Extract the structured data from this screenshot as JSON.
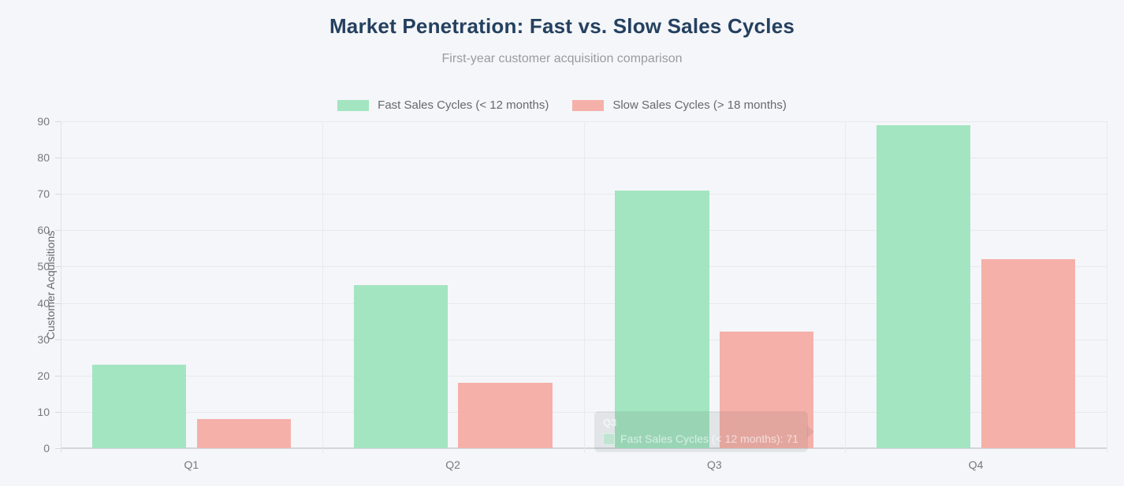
{
  "header": {
    "title": "Market Penetration: Fast vs. Slow Sales Cycles",
    "subtitle": "First-year customer acquisition comparison"
  },
  "colors": {
    "background": "#f4f6f9",
    "title": "#25405f",
    "fast_series": "#a3e5c1",
    "slow_series": "#f5b0a9",
    "grid": "#e7e9eb"
  },
  "chart_data": {
    "type": "bar",
    "title": "Market Penetration: Fast vs. Slow Sales Cycles",
    "subtitle": "First-year customer acquisition comparison",
    "categories": [
      "Q1",
      "Q2",
      "Q3",
      "Q4"
    ],
    "series": [
      {
        "name": "Fast Sales Cycles (< 12 months)",
        "color": "#a3e5c1",
        "values": [
          23,
          45,
          71,
          89
        ]
      },
      {
        "name": "Slow Sales Cycles (> 18 months)",
        "color": "#f5b0a9",
        "values": [
          8,
          18,
          32,
          52
        ]
      }
    ],
    "xlabel": "",
    "ylabel": "Customer Acquisitions",
    "ylim": [
      0,
      90
    ],
    "yticks": [
      0,
      10,
      20,
      30,
      40,
      50,
      60,
      70,
      80,
      90
    ],
    "grid": true,
    "legend_position": "top"
  },
  "tooltip": {
    "header": "Q3",
    "series_label": "Fast Sales Cycles (< 12 months)",
    "value": 71
  }
}
